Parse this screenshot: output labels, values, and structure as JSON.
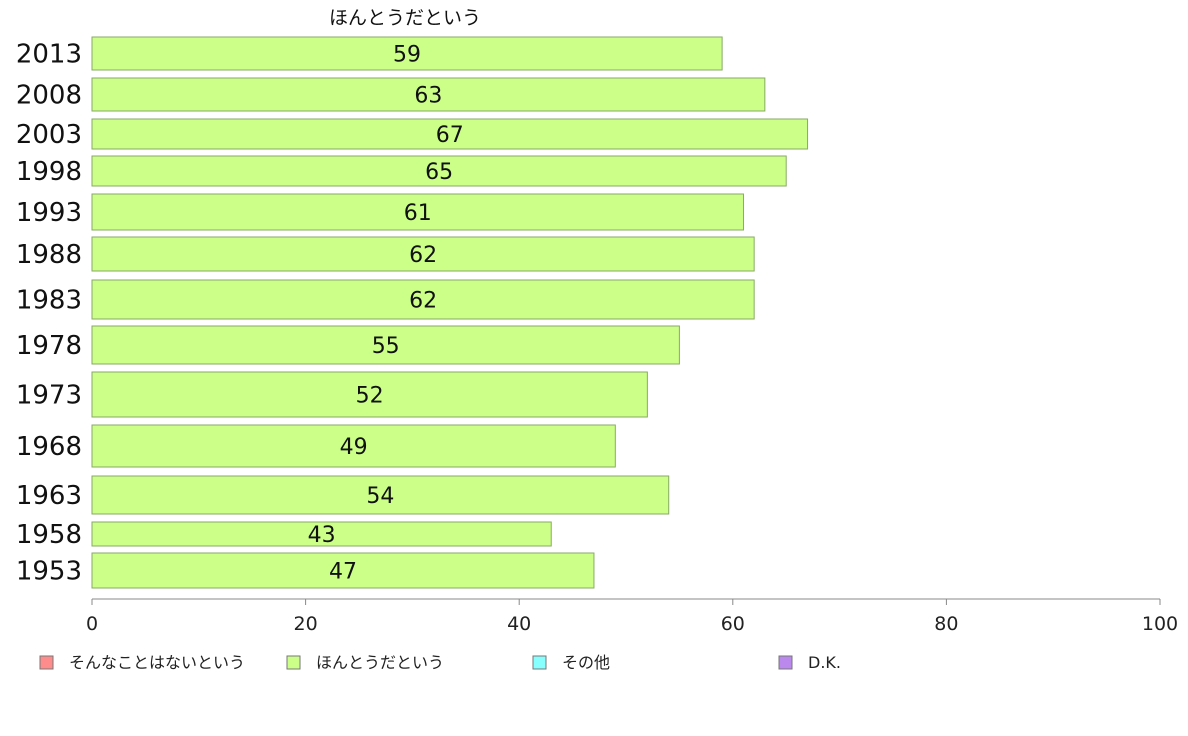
{
  "chart_data": {
    "type": "bar",
    "orientation": "horizontal",
    "series_title": "ほんとうだという",
    "categories": [
      "2013",
      "2008",
      "2003",
      "1998",
      "1993",
      "1988",
      "1983",
      "1978",
      "1973",
      "1968",
      "1963",
      "1958",
      "1953"
    ],
    "values": [
      59,
      63,
      67,
      65,
      61,
      62,
      62,
      55,
      52,
      49,
      54,
      43,
      47
    ],
    "xlim": [
      0,
      100
    ],
    "xticks": [
      0,
      20,
      40,
      60,
      80,
      100
    ],
    "grid": false,
    "legend_position": "bottom-left",
    "bar_color": "#ccff88",
    "bar_stroke": "#88aa66",
    "legend": [
      {
        "label": "そんなことはないという",
        "color": "#ff8c8c"
      },
      {
        "label": "ほんとうだという",
        "color": "#ccff88"
      },
      {
        "label": "その他",
        "color": "#88ffff"
      },
      {
        "label": "D.K.",
        "color": "#bb88ee"
      }
    ]
  }
}
